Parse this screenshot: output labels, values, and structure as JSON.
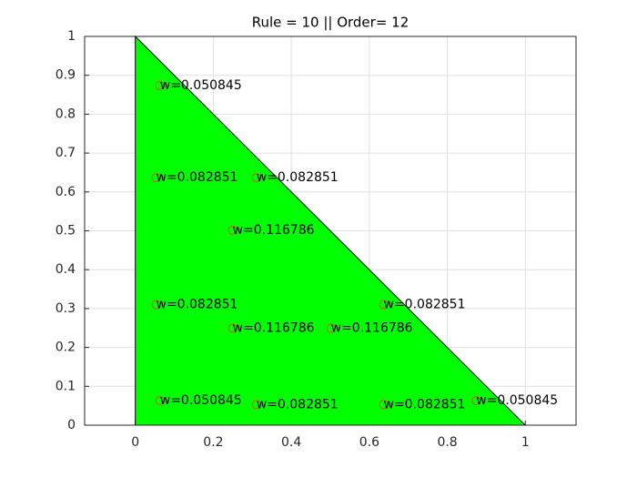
{
  "chart_data": {
    "type": "scatter",
    "title": "Rule = 10 || Order= 12",
    "triangle": {
      "x": [
        0,
        1,
        0
      ],
      "y": [
        0,
        0,
        1
      ],
      "color": "#00ff00"
    },
    "series": [
      {
        "color": "#d95319",
        "x": [
          0.063089,
          0.063089,
          0.873822,
          0.249287,
          0.501427,
          0.249287,
          0.053145,
          0.310352,
          0.636502,
          0.636502,
          0.053145,
          0.310352
        ],
        "values": [
          0.873822,
          0.063089,
          0.063089,
          0.501427,
          0.249287,
          0.249287,
          0.310352,
          0.053145,
          0.053145,
          0.310352,
          0.636502,
          0.636502
        ],
        "labels": [
          "w=0.050845",
          "w=0.050845",
          "w=0.050845",
          "w=0.116786",
          "w=0.116786",
          "w=0.116786",
          "w=0.082851",
          "w=0.082851",
          "w=0.082851",
          "w=0.082851",
          "w=0.082851",
          "w=0.082851"
        ]
      }
    ],
    "xlim": [
      -0.13,
      1.13
    ],
    "ylim": [
      0,
      1
    ],
    "xticks": [
      0,
      0.2,
      0.4,
      0.6,
      0.8,
      1
    ],
    "yticks": [
      0,
      0.1,
      0.2,
      0.3,
      0.4,
      0.5,
      0.6,
      0.7,
      0.8,
      0.9,
      1
    ],
    "grid": true
  }
}
